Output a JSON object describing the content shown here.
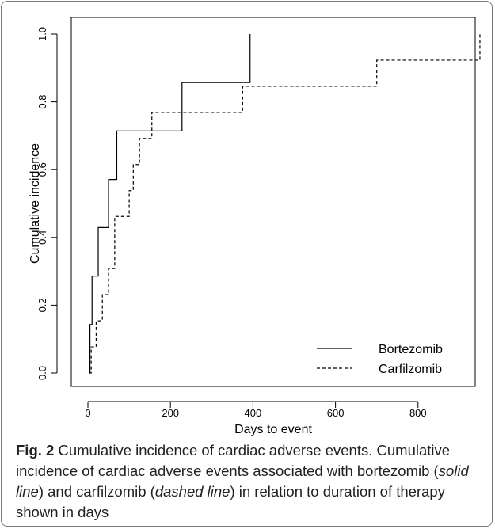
{
  "figure": {
    "label": "Fig. 2",
    "caption_parts": [
      {
        "text": " Cumulative incidence of cardiac adverse events. Cumulative incidence of cardiac adverse events associated with bortezomib (",
        "italic": false
      },
      {
        "text": "solid line",
        "italic": true
      },
      {
        "text": ") and carfilzomib (",
        "italic": false
      },
      {
        "text": "dashed line",
        "italic": true
      },
      {
        "text": ") in relation to duration of therapy shown in days",
        "italic": false
      }
    ]
  },
  "chart_data": {
    "type": "line",
    "step": true,
    "xlabel": "Days to event",
    "ylabel": "Cumulative incidence",
    "xlim": [
      0,
      960
    ],
    "ylim": [
      0,
      1.0
    ],
    "x_ticks": [
      0,
      200,
      400,
      600,
      800
    ],
    "x_tick_labels": [
      "0",
      "200",
      "400",
      "600",
      "800"
    ],
    "y_ticks": [
      0.0,
      0.2,
      0.4,
      0.6,
      0.8,
      1.0
    ],
    "y_tick_labels": [
      "0.0",
      "0.2",
      "0.4",
      "0.6",
      "0.8",
      "1.0"
    ],
    "grid": false,
    "legend_position": "bottom-right",
    "series": [
      {
        "name": "Bortezomib",
        "style": "solid",
        "color": "#000000",
        "x": [
          3,
          5,
          10,
          25,
          50,
          70,
          228,
          393
        ],
        "y": [
          0.0,
          0.143,
          0.286,
          0.429,
          0.571,
          0.714,
          0.857,
          1.0
        ]
      },
      {
        "name": "Carfilzomib",
        "style": "dashed",
        "color": "#000000",
        "x": [
          3,
          8,
          20,
          35,
          50,
          65,
          100,
          110,
          125,
          155,
          375,
          700,
          950
        ],
        "y": [
          0.0,
          0.077,
          0.154,
          0.231,
          0.308,
          0.462,
          0.538,
          0.615,
          0.692,
          0.769,
          0.846,
          0.923,
          1.0
        ]
      }
    ]
  }
}
